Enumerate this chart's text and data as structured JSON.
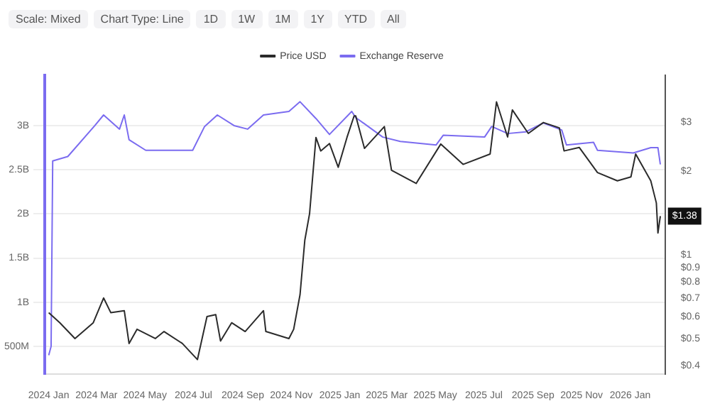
{
  "chart_data": {
    "type": "line",
    "legend": "top",
    "grid": "y",
    "marker": "none",
    "line_style": "solid",
    "log": "y2",
    "xlim": [
      "2023-12-27",
      "2026-02-14"
    ],
    "xticks": [
      {
        "value": "2024-01-01",
        "label": "2024 Jan"
      },
      {
        "value": "2024-03-01",
        "label": "2024 Mar"
      },
      {
        "value": "2024-05-01",
        "label": "2024 May"
      },
      {
        "value": "2024-07-01",
        "label": "2024 Jul"
      },
      {
        "value": "2024-09-01",
        "label": "2024 Sep"
      },
      {
        "value": "2024-11-01",
        "label": "2024 Nov"
      },
      {
        "value": "2025-01-01",
        "label": "2025 Jan"
      },
      {
        "value": "2025-03-01",
        "label": "2025 Mar"
      },
      {
        "value": "2025-05-01",
        "label": "2025 May"
      },
      {
        "value": "2025-07-01",
        "label": "2025 Jul"
      },
      {
        "value": "2025-09-01",
        "label": "2025 Sep"
      },
      {
        "value": "2025-11-01",
        "label": "2025 Nov"
      },
      {
        "value": "2026-01-01",
        "label": "2026 Jan"
      }
    ],
    "ylim": [
      185000000,
      3570000000
    ],
    "yticks": [
      {
        "value": 500000000,
        "label": "500M"
      },
      {
        "value": 1000000000,
        "label": "1B"
      },
      {
        "value": 1500000000,
        "label": "1.5B"
      },
      {
        "value": 2000000000,
        "label": "2B"
      },
      {
        "value": 2500000000,
        "label": "2.5B"
      },
      {
        "value": 3000000000,
        "label": "3B"
      }
    ],
    "y2lim": [
      0.372,
      4.44
    ],
    "y2ticks": [
      {
        "value": 0.4,
        "label": "$0.4"
      },
      {
        "value": 0.5,
        "label": "$0.5"
      },
      {
        "value": 0.6,
        "label": "$0.6"
      },
      {
        "value": 0.7,
        "label": "$0.7"
      },
      {
        "value": 0.8,
        "label": "$0.8"
      },
      {
        "value": 0.9,
        "label": "$0.9"
      },
      {
        "value": 1,
        "label": "$1"
      },
      {
        "value": 2,
        "label": "$2"
      },
      {
        "value": 3,
        "label": "$3"
      }
    ],
    "annotations": [
      "Scale: Mixed",
      "Chart Type: Line",
      "1D",
      "1W",
      "1M",
      "1Y",
      "YTD",
      "All",
      "$1.38"
    ],
    "series": [
      {
        "name": "Price USD",
        "color": "#2b2b2b",
        "axis": "y2",
        "x": [
          "2024-01-01",
          "2024-01-15",
          "2024-02-03",
          "2024-02-26",
          "2024-03-10",
          "2024-03-19",
          "2024-04-05",
          "2024-04-11",
          "2024-04-21",
          "2024-05-14",
          "2024-05-25",
          "2024-06-17",
          "2024-07-06",
          "2024-07-18",
          "2024-07-29",
          "2024-08-04",
          "2024-08-18",
          "2024-09-04",
          "2024-09-27",
          "2024-09-30",
          "2024-10-29",
          "2024-11-04",
          "2024-11-12",
          "2024-11-18",
          "2024-11-24",
          "2024-12-02",
          "2024-12-08",
          "2024-12-19",
          "2024-12-30",
          "2025-01-10",
          "2025-01-19",
          "2025-01-21",
          "2025-02-01",
          "2025-02-26",
          "2025-03-07",
          "2025-04-07",
          "2025-05-08",
          "2025-06-05",
          "2025-07-09",
          "2025-07-17",
          "2025-07-31",
          "2025-08-06",
          "2025-08-26",
          "2025-09-14",
          "2025-10-04",
          "2025-10-10",
          "2025-10-29",
          "2025-11-21",
          "2025-12-16",
          "2026-01-02",
          "2026-01-08",
          "2026-01-27",
          "2026-02-03",
          "2026-02-05",
          "2026-02-08"
        ],
        "values": [
          0.62,
          0.57,
          0.5,
          0.57,
          0.7,
          0.62,
          0.63,
          0.48,
          0.54,
          0.5,
          0.53,
          0.48,
          0.42,
          0.6,
          0.61,
          0.49,
          0.57,
          0.53,
          0.63,
          0.53,
          0.5,
          0.54,
          0.72,
          1.13,
          1.41,
          2.65,
          2.37,
          2.52,
          2.07,
          2.65,
          3.17,
          3.17,
          2.42,
          2.9,
          2.02,
          1.81,
          2.51,
          2.12,
          2.31,
          3.56,
          2.66,
          3.33,
          2.74,
          3.0,
          2.87,
          2.37,
          2.44,
          1.98,
          1.85,
          1.91,
          2.31,
          1.85,
          1.54,
          1.2,
          1.38
        ]
      },
      {
        "name": "Exchange Reserve",
        "color": "#7b6cf0",
        "axis": "y",
        "x": [
          "2024-01-01",
          "2024-01-04",
          "2024-01-06",
          "2024-01-25",
          "2024-02-28",
          "2024-03-10",
          "2024-03-30",
          "2024-04-05",
          "2024-04-11",
          "2024-05-02",
          "2024-06-30",
          "2024-07-15",
          "2024-07-31",
          "2024-08-21",
          "2024-09-07",
          "2024-09-27",
          "2024-10-29",
          "2024-11-12",
          "2024-12-02",
          "2024-12-19",
          "2025-01-16",
          "2025-01-21",
          "2025-02-01",
          "2025-02-24",
          "2025-03-18",
          "2025-05-02",
          "2025-05-11",
          "2025-07-02",
          "2025-07-11",
          "2025-07-31",
          "2025-08-23",
          "2025-09-14",
          "2025-10-07",
          "2025-10-13",
          "2025-11-16",
          "2025-11-21",
          "2026-01-05",
          "2026-01-27",
          "2026-02-05",
          "2026-02-08"
        ],
        "values": [
          400000000,
          500000000,
          2600000000,
          2650000000,
          3000000000,
          3120000000,
          2960000000,
          3120000000,
          2840000000,
          2720000000,
          2720000000,
          2990000000,
          3120000000,
          3000000000,
          2960000000,
          3120000000,
          3160000000,
          3270000000,
          3080000000,
          2900000000,
          3160000000,
          3090000000,
          3020000000,
          2870000000,
          2820000000,
          2780000000,
          2890000000,
          2870000000,
          2990000000,
          2910000000,
          2930000000,
          3030000000,
          2950000000,
          2780000000,
          2810000000,
          2720000000,
          2690000000,
          2750000000,
          2750000000,
          2560000000
        ]
      }
    ]
  }
}
